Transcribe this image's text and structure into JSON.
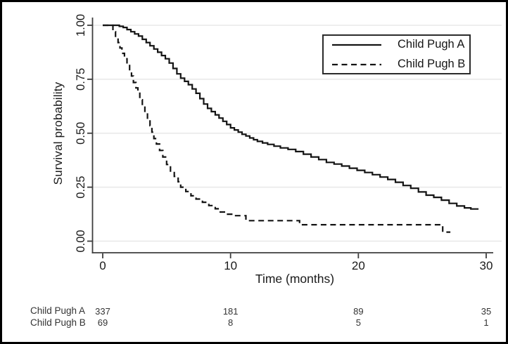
{
  "figure": {
    "background": "#ffffff",
    "border_color": "#000000",
    "curve_color": "#141414",
    "axis_color": "#3d3d3d",
    "grid_color": "#e8e8e8",
    "text_color": "#1a1a1a"
  },
  "chart_data": {
    "type": "line",
    "subtype": "kaplan-meier-step",
    "title": "",
    "grid": "horizontal",
    "x_axis": {
      "label": "Time (months)",
      "tick_values": [
        0,
        10,
        20,
        30
      ],
      "tick_labels": [
        "0",
        "10",
        "20",
        "30"
      ],
      "range": [
        0,
        30.5
      ]
    },
    "y_axis": {
      "label": "Survival probability",
      "tick_values": [
        0,
        0.25,
        0.5,
        0.75,
        1.0
      ],
      "tick_labels": [
        "0.00",
        "0.25",
        "0.50",
        "0.75",
        "1.00"
      ],
      "range": [
        0,
        1
      ]
    },
    "legend": {
      "position": "top-right",
      "border": true
    },
    "series": [
      {
        "name": "Child Pugh A",
        "line_style": "solid",
        "color": "#141414",
        "end_time": 29.4,
        "points": [
          [
            0,
            1.0
          ],
          [
            1.3,
            0.995
          ],
          [
            1.6,
            0.99
          ],
          [
            1.9,
            0.98
          ],
          [
            2.2,
            0.97
          ],
          [
            2.5,
            0.96
          ],
          [
            2.8,
            0.95
          ],
          [
            3.1,
            0.935
          ],
          [
            3.4,
            0.92
          ],
          [
            3.7,
            0.905
          ],
          [
            4.0,
            0.89
          ],
          [
            4.3,
            0.875
          ],
          [
            4.6,
            0.86
          ],
          [
            4.9,
            0.845
          ],
          [
            5.2,
            0.825
          ],
          [
            5.5,
            0.8
          ],
          [
            5.8,
            0.775
          ],
          [
            6.1,
            0.755
          ],
          [
            6.4,
            0.74
          ],
          [
            6.7,
            0.725
          ],
          [
            7.0,
            0.705
          ],
          [
            7.3,
            0.685
          ],
          [
            7.6,
            0.66
          ],
          [
            7.9,
            0.635
          ],
          [
            8.2,
            0.615
          ],
          [
            8.5,
            0.6
          ],
          [
            8.8,
            0.585
          ],
          [
            9.1,
            0.57
          ],
          [
            9.4,
            0.555
          ],
          [
            9.7,
            0.54
          ],
          [
            10.0,
            0.525
          ],
          [
            10.3,
            0.515
          ],
          [
            10.6,
            0.505
          ],
          [
            10.9,
            0.495
          ],
          [
            11.2,
            0.487
          ],
          [
            11.5,
            0.478
          ],
          [
            11.8,
            0.47
          ],
          [
            12.1,
            0.462
          ],
          [
            12.5,
            0.455
          ],
          [
            12.9,
            0.448
          ],
          [
            13.4,
            0.44
          ],
          [
            13.9,
            0.432
          ],
          [
            14.5,
            0.425
          ],
          [
            15.1,
            0.415
          ],
          [
            15.7,
            0.403
          ],
          [
            16.3,
            0.39
          ],
          [
            16.9,
            0.378
          ],
          [
            17.5,
            0.365
          ],
          [
            18.1,
            0.357
          ],
          [
            18.7,
            0.348
          ],
          [
            19.3,
            0.338
          ],
          [
            19.9,
            0.328
          ],
          [
            20.5,
            0.318
          ],
          [
            21.1,
            0.308
          ],
          [
            21.7,
            0.297
          ],
          [
            22.3,
            0.286
          ],
          [
            22.9,
            0.273
          ],
          [
            23.5,
            0.258
          ],
          [
            24.1,
            0.245
          ],
          [
            24.7,
            0.228
          ],
          [
            25.3,
            0.213
          ],
          [
            25.9,
            0.203
          ],
          [
            26.5,
            0.19
          ],
          [
            27.1,
            0.175
          ],
          [
            27.7,
            0.163
          ],
          [
            28.3,
            0.154
          ],
          [
            28.8,
            0.149
          ]
        ]
      },
      {
        "name": "Child Pugh B",
        "line_style": "dashed",
        "color": "#141414",
        "end_time": 27.2,
        "points": [
          [
            0,
            1.0
          ],
          [
            0.8,
            0.97
          ],
          [
            1.0,
            0.945
          ],
          [
            1.2,
            0.92
          ],
          [
            1.35,
            0.895
          ],
          [
            1.5,
            0.87
          ],
          [
            1.7,
            0.845
          ],
          [
            1.9,
            0.82
          ],
          [
            2.1,
            0.79
          ],
          [
            2.25,
            0.765
          ],
          [
            2.4,
            0.735
          ],
          [
            2.6,
            0.71
          ],
          [
            2.75,
            0.685
          ],
          [
            2.9,
            0.655
          ],
          [
            3.1,
            0.625
          ],
          [
            3.3,
            0.595
          ],
          [
            3.5,
            0.565
          ],
          [
            3.7,
            0.535
          ],
          [
            3.85,
            0.505
          ],
          [
            4.0,
            0.475
          ],
          [
            4.2,
            0.45
          ],
          [
            4.45,
            0.42
          ],
          [
            4.7,
            0.39
          ],
          [
            5.0,
            0.355
          ],
          [
            5.3,
            0.325
          ],
          [
            5.6,
            0.3
          ],
          [
            5.9,
            0.275
          ],
          [
            6.1,
            0.25
          ],
          [
            6.5,
            0.23
          ],
          [
            6.9,
            0.21
          ],
          [
            7.3,
            0.195
          ],
          [
            7.8,
            0.18
          ],
          [
            8.3,
            0.165
          ],
          [
            8.8,
            0.15
          ],
          [
            9.2,
            0.135
          ],
          [
            9.7,
            0.125
          ],
          [
            10.3,
            0.118
          ],
          [
            11.2,
            0.095
          ],
          [
            15.4,
            0.076
          ],
          [
            26.6,
            0.042
          ]
        ]
      }
    ]
  },
  "risk_table": {
    "value_times": [
      0,
      10,
      20,
      30
    ],
    "rows": [
      {
        "label": "Child Pugh A",
        "values": [
          "337",
          "181",
          "89",
          "35"
        ]
      },
      {
        "label": "Child Pugh B",
        "values": [
          "69",
          "8",
          "5",
          "1"
        ]
      }
    ]
  }
}
